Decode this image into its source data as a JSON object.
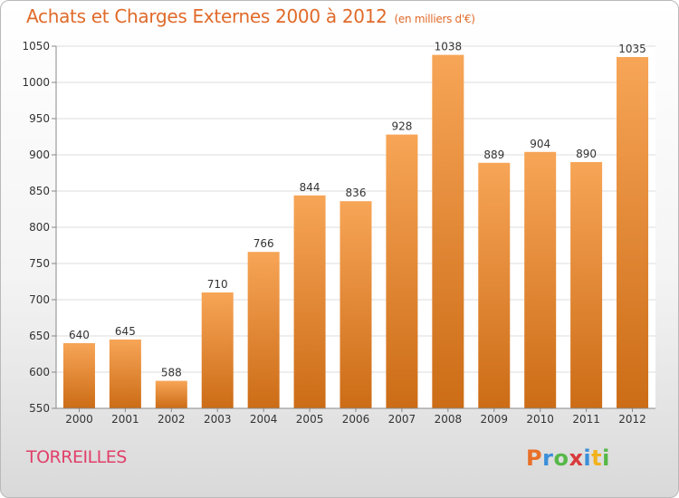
{
  "header": {
    "title": "Achats et Charges Externes 2000 à 2012",
    "subtitle": "(en milliers d'€)"
  },
  "footer": {
    "place": "TORREILLES",
    "logo": {
      "letters": [
        "P",
        "r",
        "o",
        "x",
        "i",
        "t",
        "i"
      ],
      "colors": [
        "#e8702a",
        "#3a8fd9",
        "#56b848",
        "#d93a3a",
        "#3a8fd9",
        "#f2b21c",
        "#56b848"
      ]
    }
  },
  "colors": {
    "bar_top": "#f7a557",
    "bar_bottom": "#cc6c16",
    "title": "#e06a2a",
    "place": "#e0406a",
    "grid": "#dddddd"
  },
  "chart_data": {
    "type": "bar",
    "title": "Achats et Charges Externes 2000 à 2012",
    "subtitle": "(en milliers d'€)",
    "categories": [
      "2000",
      "2001",
      "2002",
      "2003",
      "2004",
      "2005",
      "2006",
      "2007",
      "2008",
      "2009",
      "2010",
      "2011",
      "2012"
    ],
    "values": [
      640,
      645,
      588,
      710,
      766,
      844,
      836,
      928,
      1038,
      889,
      904,
      890,
      1035
    ],
    "ylim": [
      550,
      1050
    ],
    "yticks": [
      550,
      600,
      650,
      700,
      750,
      800,
      850,
      900,
      950,
      1000,
      1050
    ],
    "grid": true,
    "data_labels": true
  }
}
